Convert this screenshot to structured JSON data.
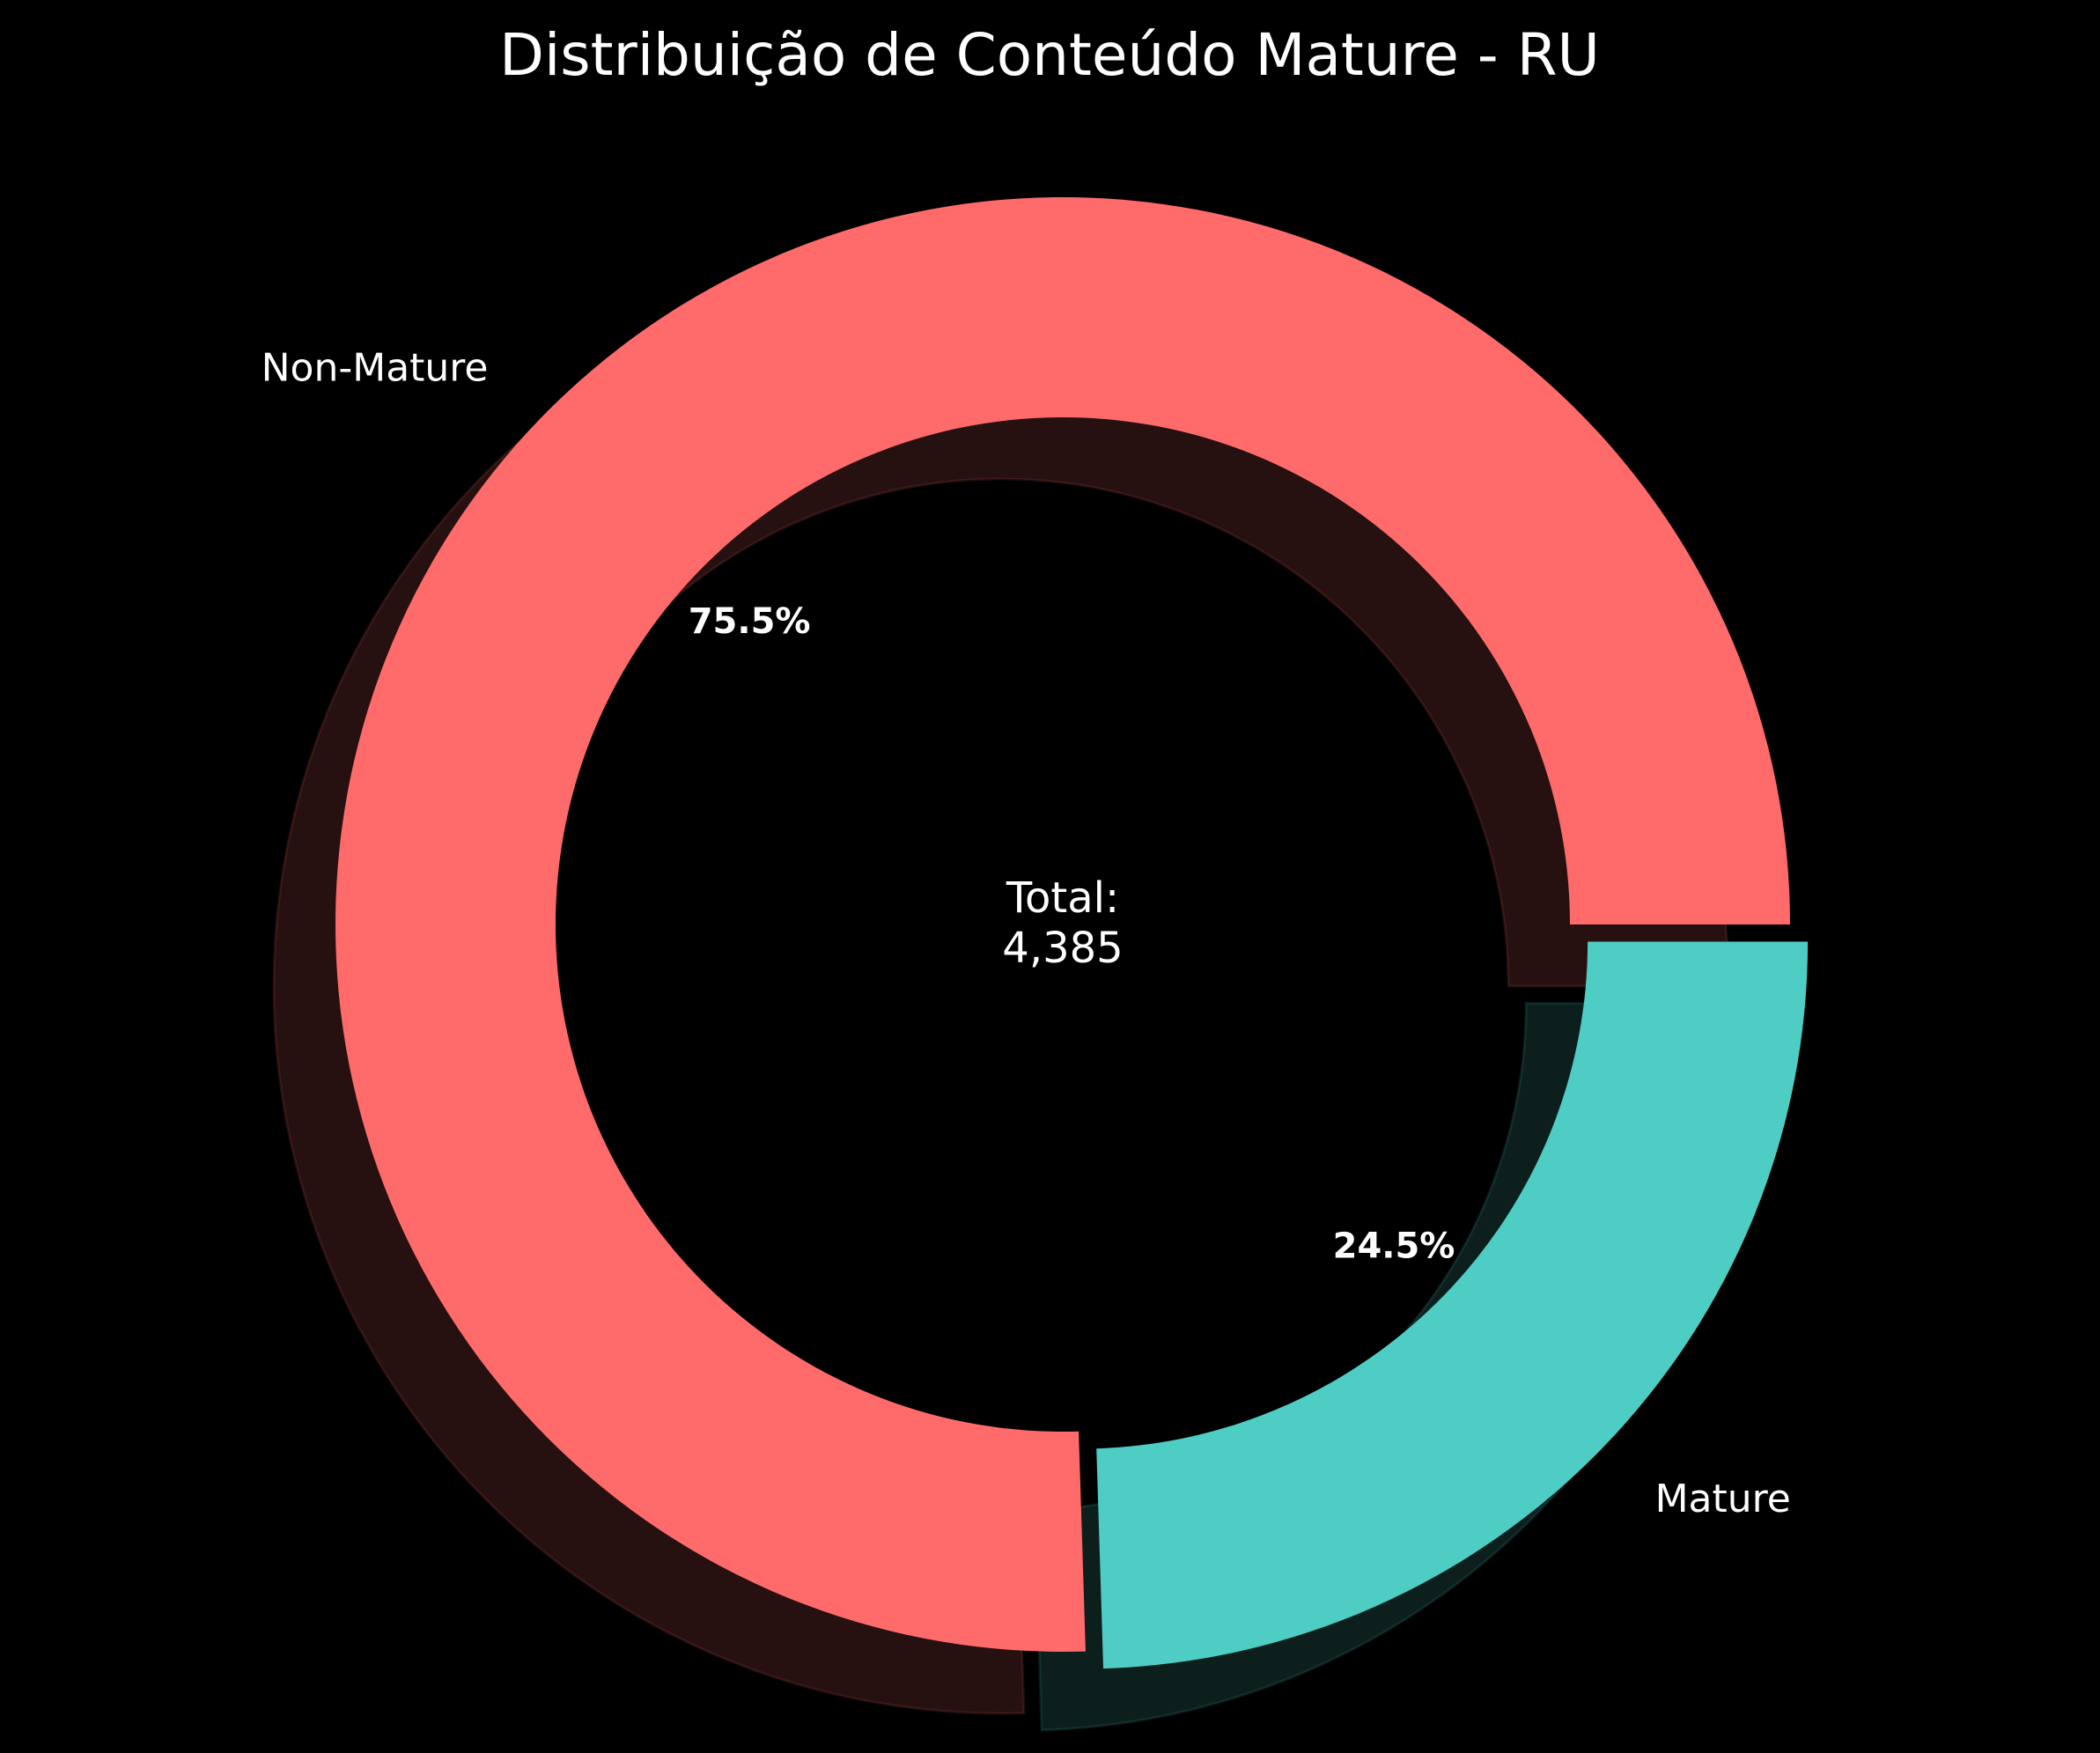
{
  "chart_data": {
    "type": "pie",
    "variant": "donut",
    "title": "Distribuição de Conteúdo Mature - RU",
    "categories": [
      "Non-Mature",
      "Mature"
    ],
    "values": [
      75.5,
      24.5
    ],
    "percent_labels": [
      "75.5%",
      "24.5%"
    ],
    "colors": [
      "#ff6b6b",
      "#4ecdc4"
    ],
    "exploded": "Mature",
    "shadow": true,
    "center_label": {
      "line1": "Total:",
      "line2": "4,385"
    },
    "background": "#000000",
    "legend": "none"
  }
}
